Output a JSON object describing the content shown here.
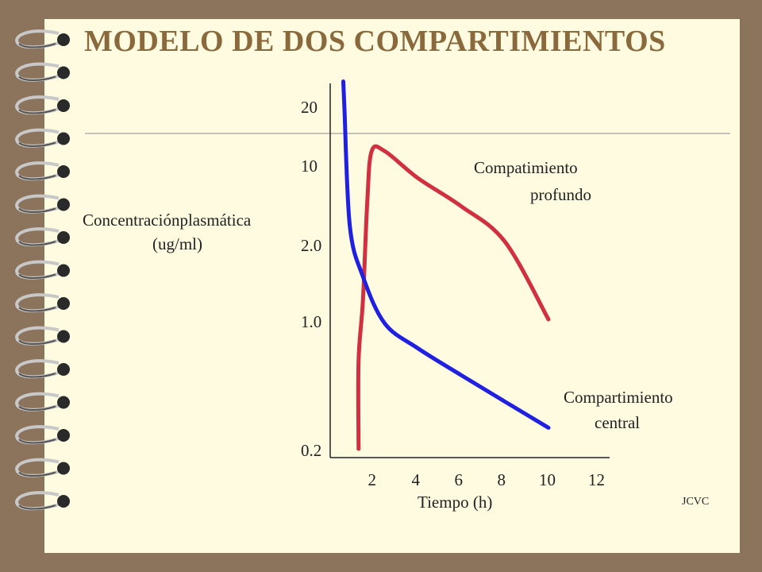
{
  "slide": {
    "title": "MODELO DE DOS COMPARTIMIENTOS",
    "credit": "JCVC",
    "background": "#fffbe0",
    "frame": "#8b735c",
    "title_color": "#8a6a3c"
  },
  "chart_data": {
    "type": "line",
    "ylabel": "Concentraciónplasmática",
    "ylabel_unit": "(ug/ml)",
    "xlabel": "Tiempo (h)",
    "y_ticks": [
      "20",
      "10",
      "2.0",
      "1.0",
      "0.2"
    ],
    "x_ticks": [
      "2",
      "4",
      "6",
      "8",
      "10",
      "12"
    ],
    "grid": false,
    "series": [
      {
        "name_lines": [
          "Compartimiento",
          "central"
        ],
        "color": "#2020e0",
        "points": [
          [
            0.6,
            27
          ],
          [
            0.65,
            20
          ],
          [
            0.9,
            3.0
          ],
          [
            1.5,
            1.5
          ],
          [
            2.5,
            0.95
          ],
          [
            4,
            0.7
          ],
          [
            6,
            0.5
          ],
          [
            8,
            0.36
          ],
          [
            10,
            0.26
          ]
        ]
      },
      {
        "name_lines": [
          "Compatimiento",
          "profundo"
        ],
        "color": "#d03040",
        "points": [
          [
            1.3,
            0.2
          ],
          [
            1.3,
            0.6
          ],
          [
            1.5,
            1.2
          ],
          [
            1.7,
            5
          ],
          [
            1.9,
            12
          ],
          [
            2.5,
            12
          ],
          [
            4,
            8
          ],
          [
            6,
            4.5
          ],
          [
            8,
            2.2
          ],
          [
            10,
            1.0
          ]
        ]
      }
    ]
  }
}
